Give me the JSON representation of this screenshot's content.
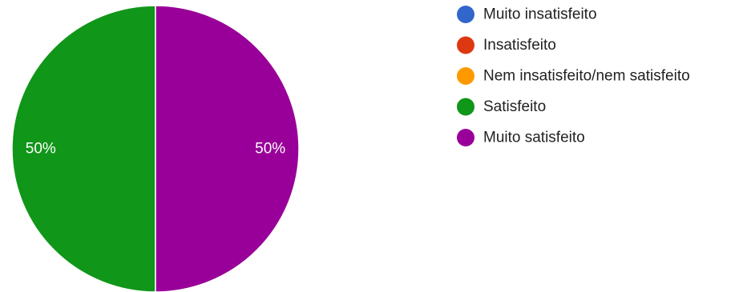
{
  "chart_data": {
    "type": "pie",
    "categories": [
      "Muito insatisfeito",
      "Insatisfeito",
      "Nem insatisfeito/nem satisfeito",
      "Satisfeito",
      "Muito satisfeito"
    ],
    "values": [
      0,
      0,
      0,
      50,
      50
    ],
    "value_labels": [
      "",
      "",
      "",
      "50%",
      "50%"
    ],
    "colors": [
      "#3366cc",
      "#dc3912",
      "#ff9900",
      "#109618",
      "#990099"
    ],
    "legend_position": "right",
    "title": ""
  }
}
